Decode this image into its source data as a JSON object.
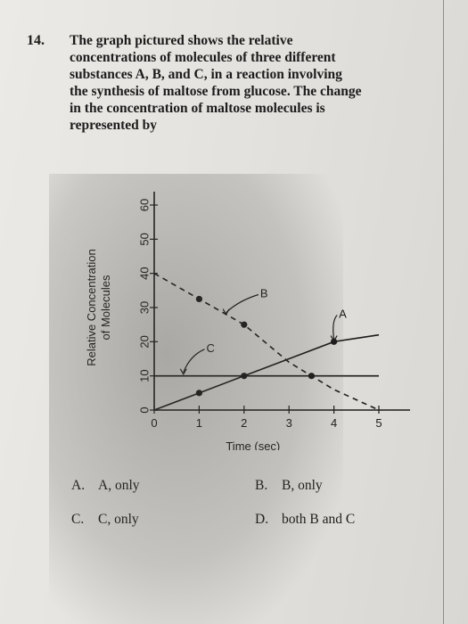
{
  "question": {
    "number": "14.",
    "lines": [
      "The graph pictured shows the relative",
      "concentrations of molecules of three different",
      "substances A, B, and C, in a reaction involving",
      "the synthesis of maltose from glucose. The change",
      "in the concentration of maltose molecules is",
      "represented by"
    ]
  },
  "chart_data": {
    "type": "line",
    "ylabel_lines": [
      "Relative Concentration",
      "of Molecules"
    ],
    "xlabel": "Time (sec)",
    "xlim": [
      0,
      5
    ],
    "ylim": [
      0,
      60
    ],
    "x_ticks": [
      "0",
      "1",
      "2",
      "3",
      "4",
      "5"
    ],
    "y_ticks": [
      "0",
      "10",
      "20",
      "30",
      "40",
      "50",
      "60"
    ],
    "series": [
      {
        "name": "A",
        "style": "solid",
        "x": [
          0,
          1,
          2,
          3,
          4,
          5
        ],
        "y": [
          0,
          5,
          10,
          15,
          20,
          22
        ],
        "markers": [
          1,
          2,
          4
        ]
      },
      {
        "name": "B",
        "style": "dashed",
        "x": [
          0,
          1,
          2,
          3,
          4,
          5
        ],
        "y": [
          40,
          32.5,
          25,
          14,
          6,
          0
        ],
        "markers": [
          1,
          2,
          3.5
        ]
      },
      {
        "name": "C",
        "style": "solid",
        "x": [
          0,
          5
        ],
        "y": [
          10,
          10
        ],
        "markers": []
      }
    ],
    "annotations": [
      {
        "text": "A",
        "x": 4.05,
        "y": 27,
        "arrow_to": [
          4.0,
          20.2
        ]
      },
      {
        "text": "B",
        "x": 2.3,
        "y": 33,
        "arrow_to": [
          1.6,
          28
        ]
      },
      {
        "text": "C",
        "x": 1.1,
        "y": 17,
        "arrow_to": [
          0.65,
          10.5
        ]
      }
    ],
    "colors": {
      "ink": "#1c1c1c"
    }
  },
  "choices": [
    {
      "letter": "A.",
      "text": "A, only"
    },
    {
      "letter": "B.",
      "text": "B, only"
    },
    {
      "letter": "C.",
      "text": "C, only"
    },
    {
      "letter": "D.",
      "text": "both B and C"
    }
  ]
}
